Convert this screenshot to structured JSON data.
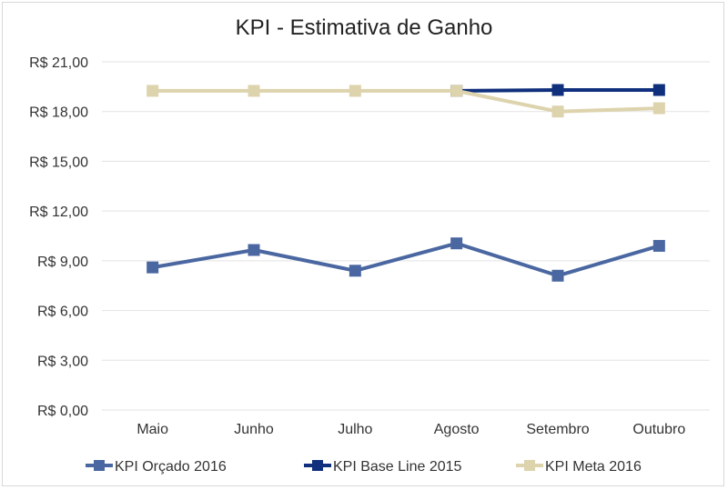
{
  "chart_data": {
    "type": "line",
    "title": "KPI - Estimativa de Ganho",
    "xlabel": "",
    "ylabel": "",
    "categories": [
      "Maio",
      "Junho",
      "Julho",
      "Agosto",
      "Setembro",
      "Outubro"
    ],
    "ylim": [
      0,
      21
    ],
    "yticks": [
      0,
      3,
      6,
      9,
      12,
      15,
      18,
      21
    ],
    "ytick_labels": [
      "R$ 0,00",
      "R$ 3,00",
      "R$ 6,00",
      "R$ 9,00",
      "R$ 12,00",
      "R$ 15,00",
      "R$ 18,00",
      "R$ 21,00"
    ],
    "grid": true,
    "legend_position": "bottom",
    "series": [
      {
        "name": "KPI Orçado 2016",
        "color": "#4a67a1",
        "values": [
          8.6,
          9.65,
          8.4,
          10.05,
          8.1,
          9.9
        ]
      },
      {
        "name": "KPI Base Line 2015",
        "color": "#102f7c",
        "values": [
          null,
          null,
          null,
          19.25,
          19.3,
          19.3
        ]
      },
      {
        "name": "KPI Meta 2016",
        "color": "#ddd3ad",
        "values": [
          19.25,
          19.25,
          19.25,
          19.25,
          18.0,
          18.2
        ]
      }
    ]
  }
}
